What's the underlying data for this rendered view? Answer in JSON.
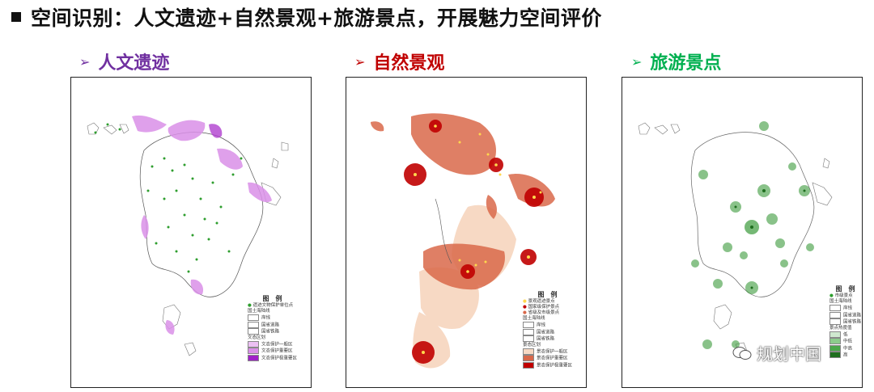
{
  "title": "空间识别：人文遗迹+自然景观+旅游景点，开展魅力空间评价",
  "panels": [
    {
      "label": "人文遗迹",
      "color": "#7030a0",
      "legend": {
        "title": "图　例",
        "items": [
          "遗迹文物保护单位点",
          "国土海陆线",
          "岸线",
          "国省道路",
          "国省铁路",
          "文态区划",
          "文态保护一般区",
          "文态保护重要区",
          "文态保护极重要区"
        ]
      }
    },
    {
      "label": "自然景观",
      "color": "#c00000",
      "legend": {
        "title": "图　例",
        "items": [
          "景观遗迹景点",
          "国家级保护景点",
          "省级及市级景点",
          "国土海陆线",
          "岸线",
          "国省道路",
          "国省铁路",
          "景态区划",
          "景态保护一般区",
          "景态保护重要区",
          "景态保护极重要区"
        ]
      }
    },
    {
      "label": "旅游景点",
      "color": "#00b050",
      "legend": {
        "title": "图　例",
        "items": [
          "市级景点",
          "国土海陆线",
          "岸线",
          "国省道路",
          "国省铁路",
          "景点热度值",
          "低",
          "中低",
          "中高",
          "高"
        ]
      }
    }
  ],
  "watermark": "规划中国",
  "colors": {
    "purple_fill": "#d98fe8",
    "purple_dark": "#b040d0",
    "green_dot": "#2e9e2e",
    "red_core": "#c00000",
    "red_mid": "#d9684a",
    "red_light": "#f7d9c4",
    "yellow": "#ffd84d",
    "green_blob": "#3a9a3a"
  }
}
